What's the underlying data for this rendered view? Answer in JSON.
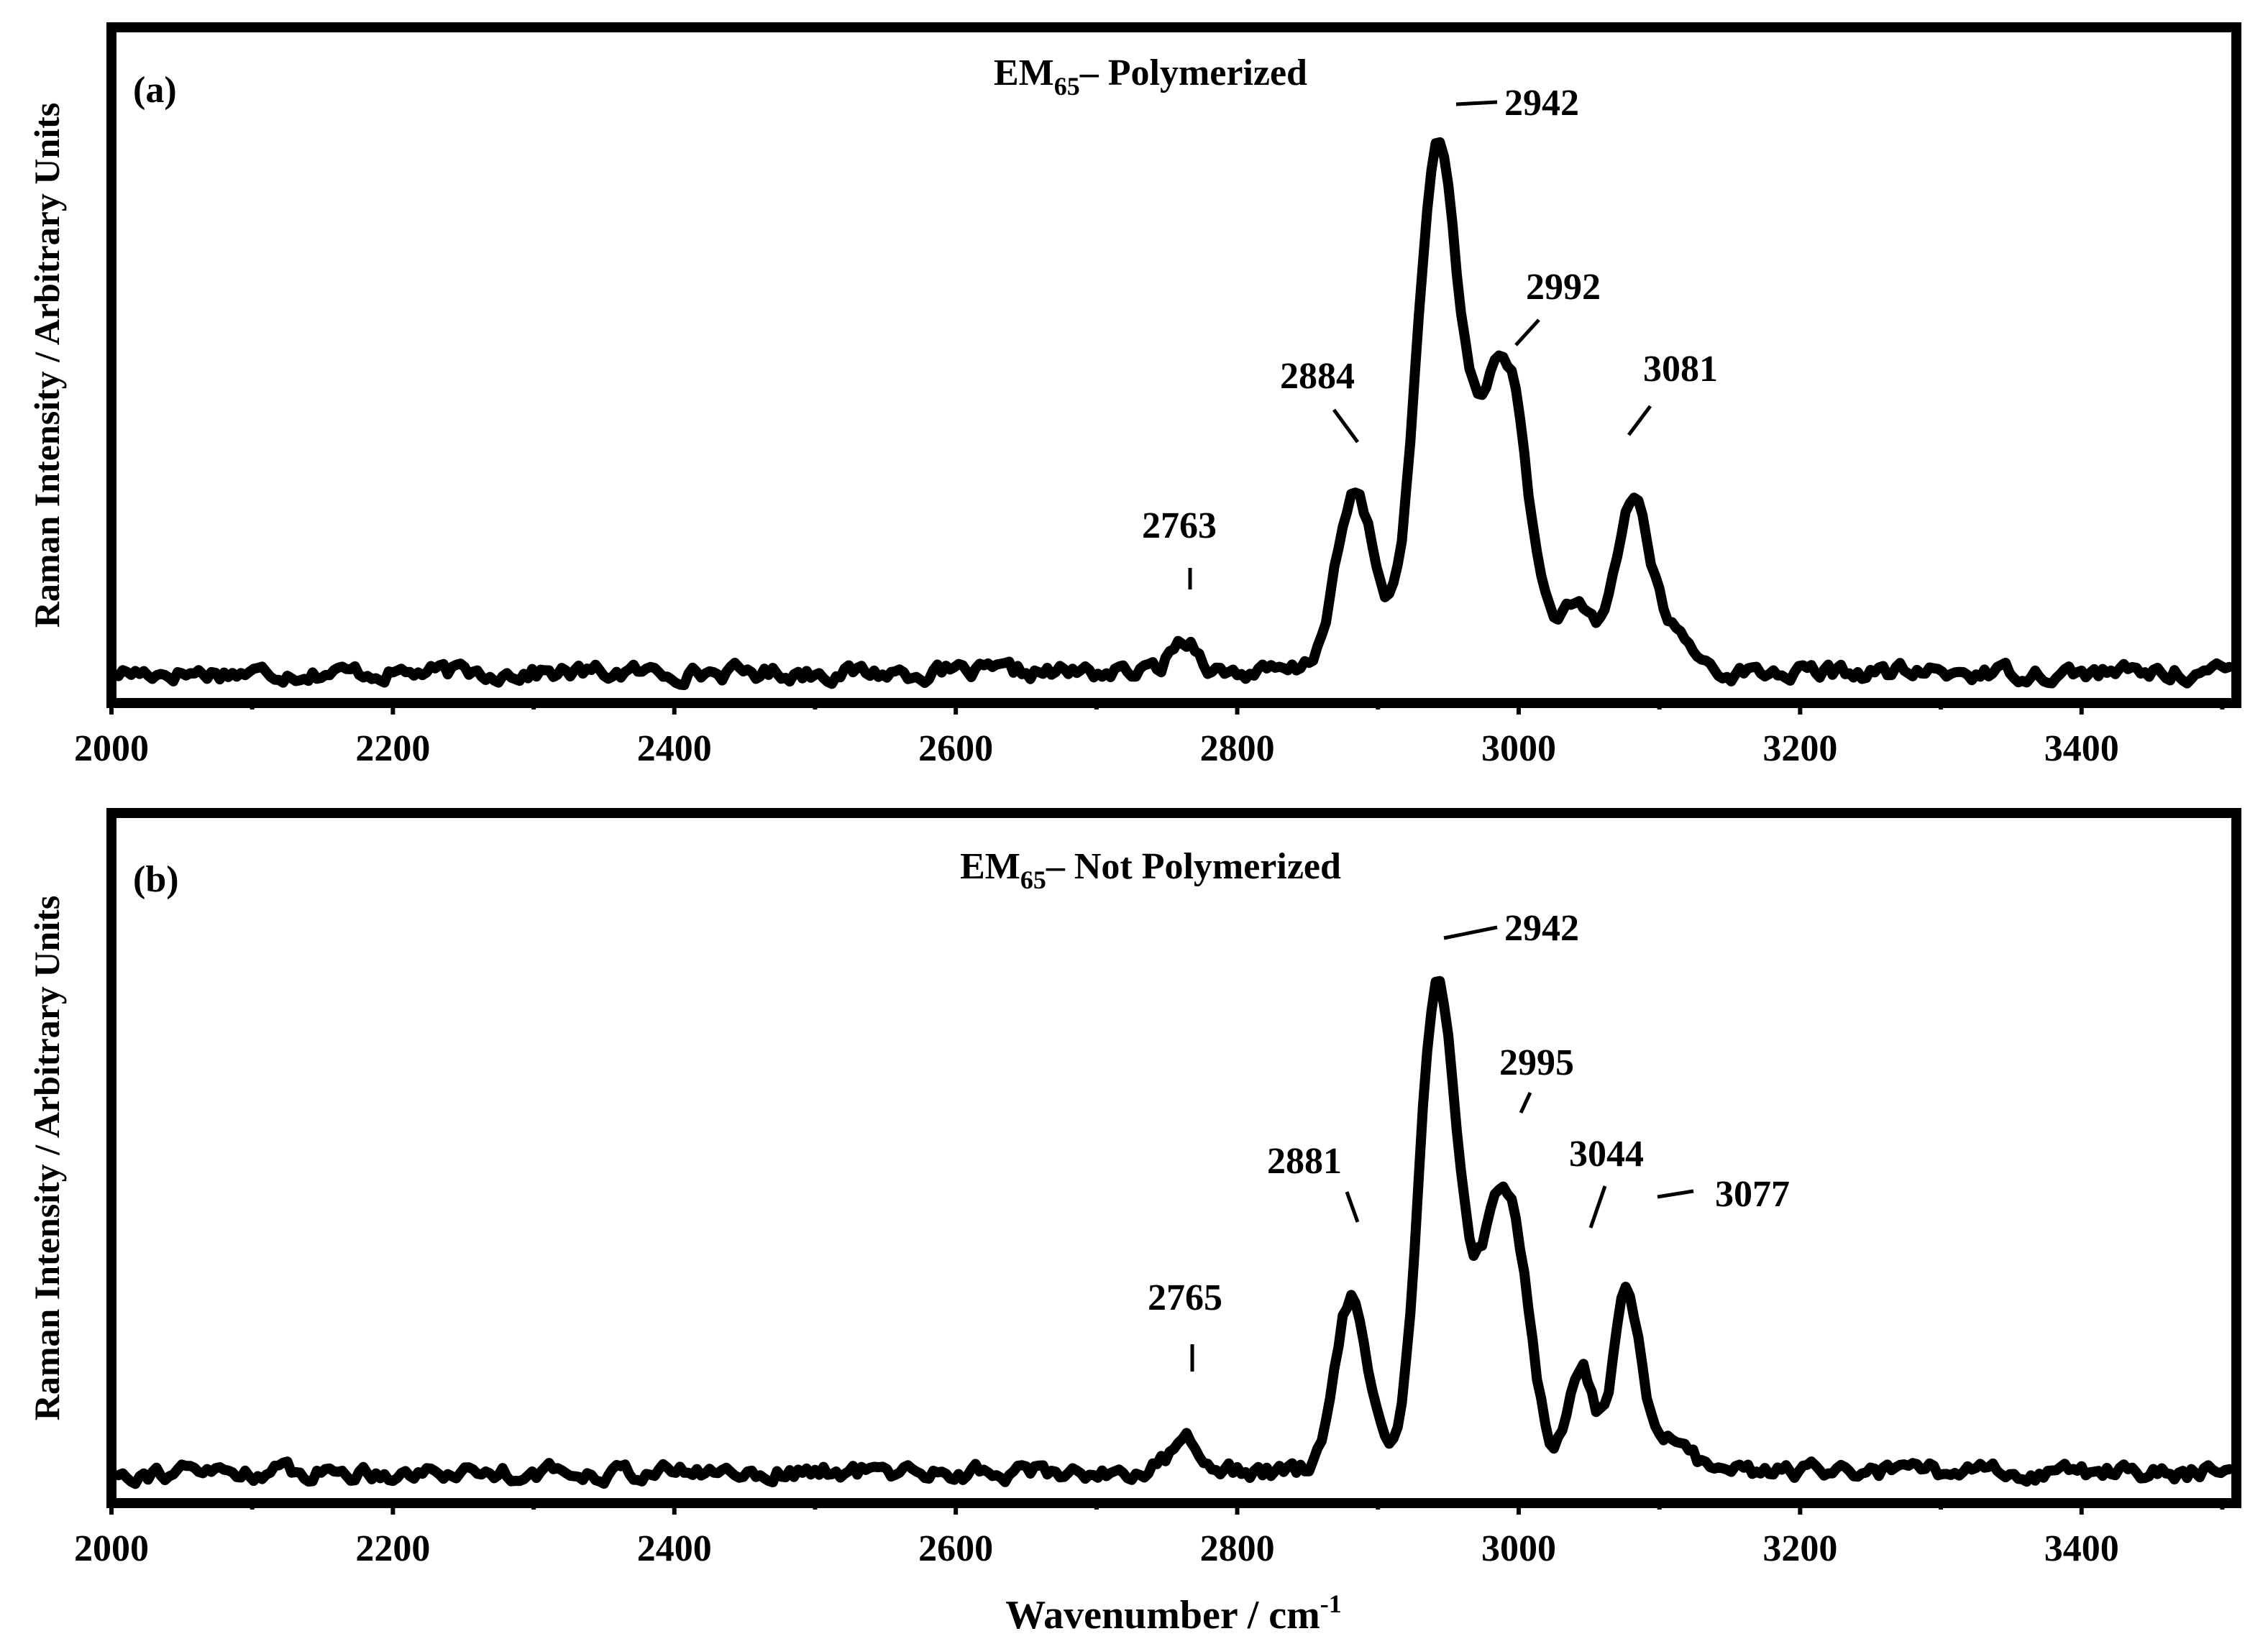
{
  "figure": {
    "ylabel": "Raman Intensity / Arbitrary Units",
    "xlabel_main": "Wavenumber / cm",
    "xlabel_sup": "-1"
  },
  "chart_data": [
    {
      "type": "line",
      "panel_label": "(a)",
      "title_main": "EM",
      "title_sub": "65",
      "title_rest": "– Polymerized",
      "ylabel": "Raman Intensity / Arbitrary Units",
      "xlabel": "",
      "xlim": [
        2000,
        3510
      ],
      "ylim": [
        -0.05,
        1.06
      ],
      "x_ticks": [
        2000,
        2200,
        2400,
        2600,
        2800,
        3000,
        3200,
        3400
      ],
      "y_ticks": [],
      "grid": false,
      "baseline": 0.0,
      "series": [
        {
          "color": "#000000",
          "peaks": [
            {
              "x": 2763,
              "h": 0.055,
              "w": 10
            },
            {
              "x": 2884,
              "h": 0.29,
              "w": 14
            },
            {
              "x": 2942,
              "h": 0.83,
              "w": 15
            },
            {
              "x": 2980,
              "h": 0.3,
              "w": 18
            },
            {
              "x": 2995,
              "h": 0.28,
              "w": 14
            },
            {
              "x": 3040,
              "h": 0.1,
              "w": 14
            },
            {
              "x": 3081,
              "h": 0.28,
              "w": 12
            },
            {
              "x": 3110,
              "h": 0.06,
              "w": 14
            }
          ]
        }
      ],
      "annotations": [
        {
          "text": "2942",
          "x": 2942
        },
        {
          "text": "2992",
          "x": 2992
        },
        {
          "text": "2884",
          "x": 2884
        },
        {
          "text": "3081",
          "x": 3081
        },
        {
          "text": "2763",
          "x": 2763
        }
      ]
    },
    {
      "type": "line",
      "panel_label": "(b)",
      "title_main": "EM",
      "title_sub": "65",
      "title_rest": "– Not Polymerized",
      "ylabel": "Raman Intensity / Arbitrary Units",
      "xlabel": "Wavenumber / cm-1",
      "xlim": [
        2000,
        3510
      ],
      "ylim": [
        -0.05,
        1.06
      ],
      "x_ticks": [
        2000,
        2200,
        2400,
        2600,
        2800,
        3000,
        3200,
        3400
      ],
      "y_ticks": [],
      "grid": false,
      "baseline": 0.0,
      "series": [
        {
          "color": "#000000",
          "peaks": [
            {
              "x": 2765,
              "h": 0.05,
              "w": 12
            },
            {
              "x": 2881,
              "h": 0.28,
              "w": 12
            },
            {
              "x": 2942,
              "h": 0.77,
              "w": 13
            },
            {
              "x": 2978,
              "h": 0.28,
              "w": 16
            },
            {
              "x": 2997,
              "h": 0.28,
              "w": 13
            },
            {
              "x": 3044,
              "h": 0.17,
              "w": 9
            },
            {
              "x": 3077,
              "h": 0.29,
              "w": 10
            },
            {
              "x": 3110,
              "h": 0.05,
              "w": 12
            }
          ]
        }
      ],
      "annotations": [
        {
          "text": "2942",
          "x": 2942
        },
        {
          "text": "2995",
          "x": 2995
        },
        {
          "text": "3044",
          "x": 3044
        },
        {
          "text": "2881",
          "x": 2881
        },
        {
          "text": "3077",
          "x": 3077
        },
        {
          "text": "2765",
          "x": 2765
        }
      ]
    }
  ]
}
